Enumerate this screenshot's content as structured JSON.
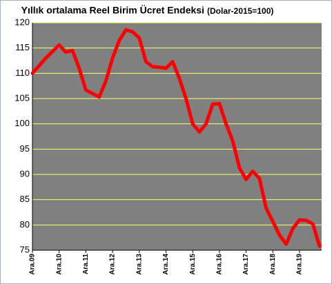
{
  "chart_data": {
    "type": "line",
    "title": "Yıllık ortalama Reel Birim Ücret Endeksi",
    "subtitle": "(Dolar-2015=100)",
    "categories": [
      "Ara.09",
      null,
      null,
      null,
      "Ara.10",
      null,
      null,
      null,
      "Ara.11",
      null,
      null,
      null,
      "Ara.12",
      null,
      null,
      null,
      "Ara.13",
      null,
      null,
      null,
      "Ara.14",
      null,
      null,
      null,
      "Ara.15",
      null,
      null,
      null,
      "Ara.16",
      null,
      null,
      null,
      "Ara.17",
      null,
      null,
      null,
      "Ara.18",
      null,
      null,
      null,
      "Ara.19",
      null,
      null,
      null
    ],
    "values": [
      110,
      111.5,
      113,
      114.3,
      115.6,
      114.2,
      114.5,
      111,
      106.7,
      106,
      105.3,
      108.5,
      113,
      116.5,
      118.6,
      118.2,
      117,
      112.3,
      111.3,
      111.2,
      111,
      112.3,
      109,
      105,
      100,
      98.4,
      100,
      103.9,
      104,
      100,
      96.6,
      91.3,
      89,
      90.6,
      89.2,
      83.3,
      80.7,
      78,
      76.2,
      79.3,
      81,
      80.9,
      80.2,
      75.8
    ],
    "color": "#ff0000",
    "ylim": [
      75,
      120
    ],
    "yticks": [
      75,
      80,
      85,
      90,
      95,
      100,
      105,
      110,
      115,
      120
    ],
    "grid": true,
    "grid_color": "#ffff66",
    "plot_background": "#808080"
  }
}
